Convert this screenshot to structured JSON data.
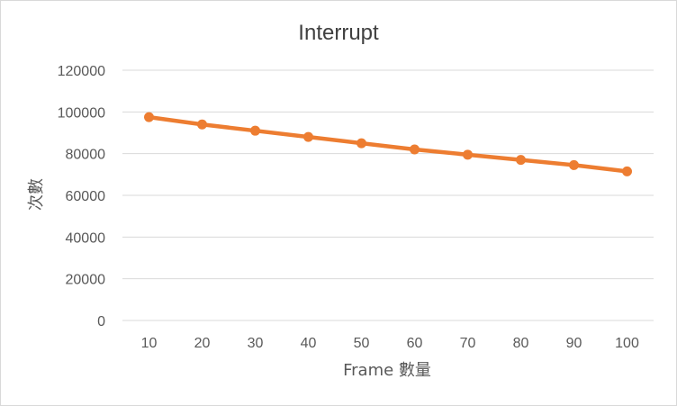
{
  "chart_data": {
    "type": "line",
    "title": "Interrupt",
    "xlabel": "Frame 數量",
    "ylabel": "次數",
    "categories": [
      "10",
      "20",
      "30",
      "40",
      "50",
      "60",
      "70",
      "80",
      "90",
      "100"
    ],
    "series": [
      {
        "color": "#ed7d31",
        "values": [
          97500,
          94000,
          91000,
          88000,
          85000,
          82000,
          79500,
          77000,
          74500,
          71500
        ]
      }
    ],
    "ylim": [
      0,
      120000
    ],
    "yticks": [
      0,
      20000,
      40000,
      60000,
      80000,
      100000,
      120000
    ],
    "grid": true,
    "legend": "none"
  }
}
